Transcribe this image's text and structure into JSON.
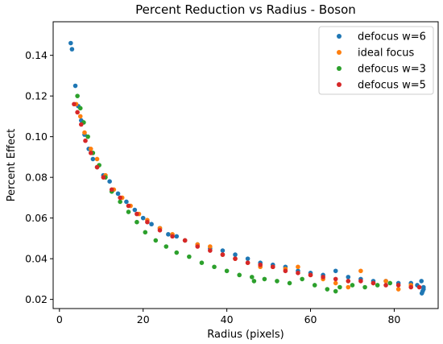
{
  "chart_data": {
    "type": "scatter",
    "title": "Percent Reduction vs Radius - Boson",
    "xlabel": "Radius (pixels)",
    "ylabel": "Percent Effect",
    "xlim": [
      -1.5,
      90.5
    ],
    "ylim": [
      0.0155,
      0.1565
    ],
    "xticks": [
      0,
      20,
      40,
      60,
      80
    ],
    "yticks": [
      0.02,
      0.04,
      0.06,
      0.08,
      0.1,
      0.12,
      0.14
    ],
    "ytick_labels": [
      "0.02",
      "0.04",
      "0.06",
      "0.08",
      "0.10",
      "0.12",
      "0.14"
    ],
    "grid": false,
    "legend_position": "top-right",
    "series": [
      {
        "name": "defocus w=6",
        "color": "#1f77b4",
        "x": [
          2.7,
          3.0,
          3.8,
          4.5,
          5.2,
          6.0,
          7.0,
          8.0,
          9.0,
          10.5,
          12.0,
          14.0,
          16.0,
          18.0,
          20.0,
          22.0,
          24.0,
          26.0,
          28.0,
          30.0,
          33.0,
          36.0,
          39.0,
          42.0,
          45.0,
          48.0,
          51.0,
          54.0,
          57.0,
          60.0,
          63.0,
          66.0,
          69.0,
          72.0,
          75.0,
          78.0,
          81.0,
          84.0,
          85.5,
          86.5,
          87.0,
          87.0,
          86.8,
          86.6
        ],
        "y": [
          0.146,
          0.143,
          0.125,
          0.115,
          0.108,
          0.101,
          0.094,
          0.089,
          0.085,
          0.081,
          0.078,
          0.072,
          0.068,
          0.064,
          0.06,
          0.057,
          0.055,
          0.052,
          0.051,
          0.049,
          0.047,
          0.045,
          0.044,
          0.042,
          0.04,
          0.038,
          0.037,
          0.036,
          0.034,
          0.033,
          0.032,
          0.034,
          0.031,
          0.03,
          0.029,
          0.029,
          0.028,
          0.028,
          0.027,
          0.029,
          0.026,
          0.025,
          0.024,
          0.023
        ]
      },
      {
        "name": "ideal focus",
        "color": "#ff7f0e",
        "x": [
          4.0,
          5.0,
          6.0,
          7.5,
          9.0,
          11.0,
          13.0,
          15.0,
          17.0,
          19.0,
          21.0,
          24.0,
          27.0,
          30.0,
          33.0,
          36.0,
          39.0,
          42.0,
          45.0,
          48.0,
          51.0,
          54.0,
          57.0,
          60.0,
          63.0,
          66.0,
          69.0,
          72.0,
          75.0,
          78.0,
          81.0,
          84.0
        ],
        "y": [
          0.116,
          0.11,
          0.102,
          0.094,
          0.089,
          0.081,
          0.074,
          0.07,
          0.066,
          0.062,
          0.059,
          0.055,
          0.052,
          0.049,
          0.047,
          0.046,
          0.042,
          0.04,
          0.038,
          0.036,
          0.036,
          0.035,
          0.036,
          0.032,
          0.03,
          0.028,
          0.026,
          0.034,
          0.028,
          0.029,
          0.025,
          0.027
        ]
      },
      {
        "name": "defocus w=3",
        "color": "#2ca02c",
        "x": [
          4.3,
          5.0,
          5.8,
          6.8,
          8.0,
          9.5,
          11.0,
          12.5,
          14.5,
          16.5,
          18.5,
          20.5,
          23.0,
          25.5,
          28.0,
          31.0,
          34.0,
          37.0,
          40.0,
          43.0,
          46.0,
          46.5,
          49.0,
          52.0,
          55.0,
          58.0,
          61.0,
          64.0,
          66.0,
          67.0,
          70.0,
          73.0,
          76.0,
          79.0
        ],
        "y": [
          0.12,
          0.114,
          0.107,
          0.1,
          0.092,
          0.086,
          0.08,
          0.073,
          0.068,
          0.063,
          0.058,
          0.053,
          0.049,
          0.046,
          0.043,
          0.041,
          0.038,
          0.036,
          0.034,
          0.032,
          0.031,
          0.029,
          0.03,
          0.029,
          0.028,
          0.03,
          0.027,
          0.025,
          0.024,
          0.026,
          0.027,
          0.026,
          0.027,
          0.028
        ]
      },
      {
        "name": "defocus w=5",
        "color": "#d62728",
        "x": [
          3.5,
          4.3,
          5.2,
          6.2,
          7.5,
          9.0,
          10.5,
          12.5,
          14.5,
          16.5,
          18.5,
          21.0,
          24.0,
          27.0,
          30.0,
          33.0,
          36.0,
          39.0,
          42.0,
          45.0,
          48.0,
          51.0,
          54.0,
          57.0,
          60.0,
          63.0,
          66.0,
          69.0,
          72.0,
          75.0,
          78.0,
          81.0,
          84.0,
          86.0
        ],
        "y": [
          0.116,
          0.112,
          0.106,
          0.098,
          0.092,
          0.085,
          0.08,
          0.074,
          0.07,
          0.066,
          0.062,
          0.058,
          0.054,
          0.051,
          0.049,
          0.046,
          0.044,
          0.042,
          0.04,
          0.038,
          0.037,
          0.036,
          0.034,
          0.033,
          0.032,
          0.031,
          0.03,
          0.029,
          0.029,
          0.028,
          0.027,
          0.027,
          0.026,
          0.026
        ]
      }
    ]
  }
}
